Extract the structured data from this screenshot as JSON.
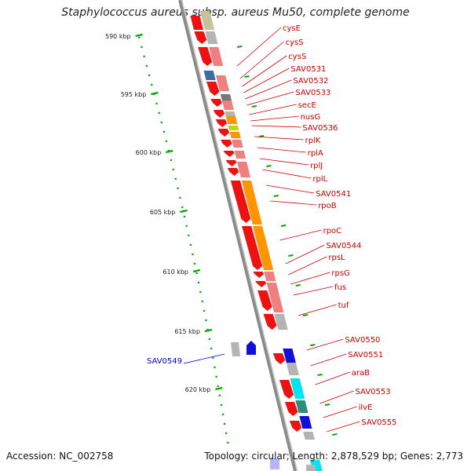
{
  "title": "Staphylococcus aureus subsp. aureus Mu50, complete genome",
  "footer": {
    "accession": "Accession: NC_002758",
    "stats": "Topology: circular; Length: 2,878,529 bp; Genes: 2,773"
  },
  "colors": {
    "red": "#ee1111",
    "pink": "#f08080",
    "orange": "#ff9500",
    "gray": "#b4b4b4",
    "blue": "#1010dd",
    "steel": "#3a6fa0",
    "cyan": "#00e5ee",
    "green": "#00aa00",
    "label_red": "#cc0000",
    "label_blue": "#0000cc"
  },
  "ticks": [
    {
      "label": "590 kbp"
    },
    {
      "label": "595 kbp"
    },
    {
      "label": "600 kbp"
    },
    {
      "label": "605 kbp"
    },
    {
      "label": "610 kbp"
    },
    {
      "label": "615 kbp"
    },
    {
      "label": "620 kbp"
    }
  ],
  "genes_right": [
    {
      "name": "cysE",
      "color": "red"
    },
    {
      "name": "cysS",
      "color": "red"
    },
    {
      "name": "cysS",
      "color": "red"
    },
    {
      "name": "SAV0531",
      "color": "red"
    },
    {
      "name": "SAV0532",
      "color": "red"
    },
    {
      "name": "SAV0533",
      "color": "red"
    },
    {
      "name": "secE",
      "color": "red"
    },
    {
      "name": "nusG",
      "color": "red"
    },
    {
      "name": "SAV0536",
      "color": "red"
    },
    {
      "name": "rplK",
      "color": "red"
    },
    {
      "name": "rplA",
      "color": "red"
    },
    {
      "name": "rplJ",
      "color": "red"
    },
    {
      "name": "rplL",
      "color": "red"
    },
    {
      "name": "SAV0541",
      "color": "red"
    },
    {
      "name": "rpoB",
      "color": "red"
    },
    {
      "name": "rpoC",
      "color": "red"
    },
    {
      "name": "SAV0544",
      "color": "red"
    },
    {
      "name": "rpsL",
      "color": "red"
    },
    {
      "name": "rpsG",
      "color": "red"
    },
    {
      "name": "fus",
      "color": "red"
    },
    {
      "name": "tuf",
      "color": "red"
    },
    {
      "name": "SAV0550",
      "color": "red"
    },
    {
      "name": "SAV0551",
      "color": "red"
    },
    {
      "name": "araB",
      "color": "red"
    },
    {
      "name": "SAV0553",
      "color": "red"
    },
    {
      "name": "ilvE",
      "color": "red"
    },
    {
      "name": "SAV0555",
      "color": "red"
    }
  ],
  "genes_left": [
    {
      "name": "SAV0549",
      "color": "blue"
    }
  ]
}
